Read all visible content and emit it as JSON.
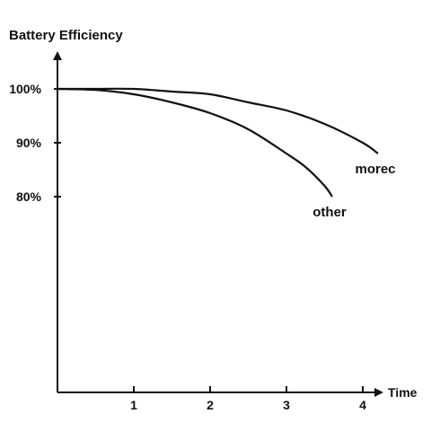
{
  "chart_data": {
    "type": "line",
    "title": "Battery Efficiency",
    "xlabel": "Time",
    "ylabel": "",
    "xlim": [
      0,
      4.6
    ],
    "ylim": [
      0,
      1.0
    ],
    "xticks": [
      1,
      2,
      3,
      4
    ],
    "xtick_labels": [
      "1",
      "2",
      "3",
      "4"
    ],
    "yticks": [
      0.8,
      0.9,
      1.0
    ],
    "ytick_labels": [
      "80%",
      "90%",
      "100%"
    ],
    "grid": false,
    "legend": "none",
    "series": [
      {
        "name": "morec",
        "color": "#111111",
        "x": [
          0,
          0.5,
          1.0,
          1.5,
          2.0,
          2.5,
          3.0,
          3.5,
          4.0,
          4.2
        ],
        "y": [
          1.0,
          1.0,
          1.0,
          0.995,
          0.99,
          0.975,
          0.96,
          0.935,
          0.9,
          0.88
        ]
      },
      {
        "name": "other",
        "color": "#111111",
        "x": [
          0,
          0.5,
          1.0,
          1.5,
          2.0,
          2.5,
          3.0,
          3.25,
          3.5,
          3.6
        ],
        "y": [
          1.0,
          0.998,
          0.99,
          0.975,
          0.955,
          0.925,
          0.88,
          0.855,
          0.82,
          0.8
        ]
      }
    ]
  }
}
